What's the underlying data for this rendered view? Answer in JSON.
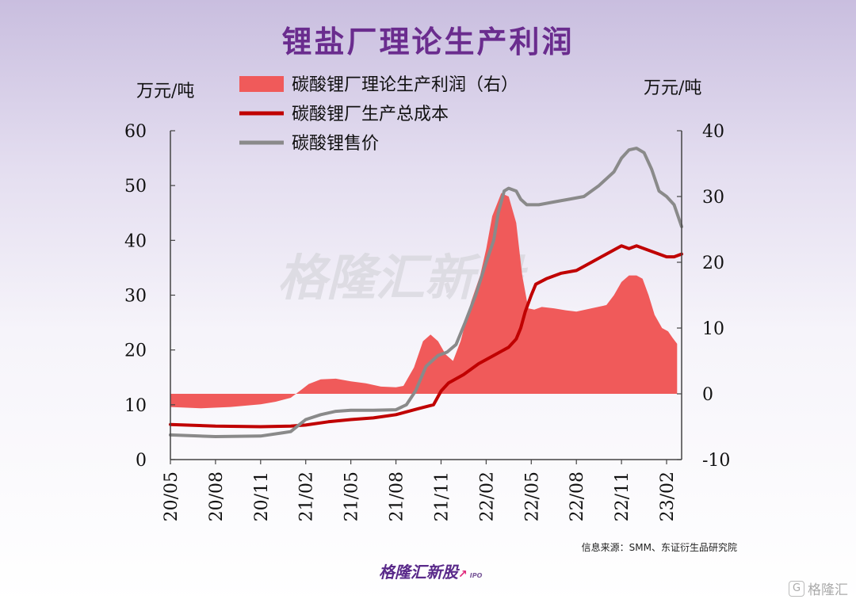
{
  "page": {
    "title": "锂盐厂理论生产利润",
    "source": "信息来源：SMM、东证衍生品研究院",
    "brand": "格隆汇新股",
    "brand_suffix": "IPO",
    "corner_brand": "格隆汇",
    "watermark": "格隆汇新股",
    "colors": {
      "title": "#6a2c8e",
      "profit": "#f05a5a",
      "cost": "#c00000",
      "price": "#8a8a8a"
    }
  },
  "chart_data": {
    "type": "area",
    "title": "锂盐厂理论生产利润",
    "y_left_label": "万元/吨",
    "y_right_label": "万元/吨",
    "y_left_lim": [
      0,
      60
    ],
    "y_right_lim": [
      -10,
      40
    ],
    "y_left_ticks": [
      0,
      10,
      20,
      30,
      40,
      50,
      60
    ],
    "y_right_ticks": [
      -10,
      0,
      10,
      20,
      30,
      40
    ],
    "x_lim": [
      0,
      34
    ],
    "x_ticks": [
      {
        "x": 0,
        "label": "20/05"
      },
      {
        "x": 3,
        "label": "20/08"
      },
      {
        "x": 6,
        "label": "20/11"
      },
      {
        "x": 9,
        "label": "21/02"
      },
      {
        "x": 12,
        "label": "21/05"
      },
      {
        "x": 15,
        "label": "21/08"
      },
      {
        "x": 18,
        "label": "21/11"
      },
      {
        "x": 21,
        "label": "22/02"
      },
      {
        "x": 24,
        "label": "22/05"
      },
      {
        "x": 27,
        "label": "22/08"
      },
      {
        "x": 30,
        "label": "22/11"
      },
      {
        "x": 33,
        "label": "23/02"
      }
    ],
    "grid": false,
    "legend_position": "top-left",
    "series": [
      {
        "name": "碳酸锂厂理论生产利润（右）",
        "kind": "area",
        "axis": "right",
        "color": "#f05a5a",
        "points": [
          [
            0,
            -2
          ],
          [
            2,
            -2.2
          ],
          [
            4,
            -2
          ],
          [
            6,
            -1.6
          ],
          [
            7,
            -1.2
          ],
          [
            8,
            -0.6
          ],
          [
            8.7,
            0.6
          ],
          [
            9.2,
            1.5
          ],
          [
            10,
            2.2
          ],
          [
            11,
            2.3
          ],
          [
            12,
            1.9
          ],
          [
            13,
            1.6
          ],
          [
            14,
            1.1
          ],
          [
            15,
            1.0
          ],
          [
            15.5,
            1.2
          ],
          [
            16.2,
            4
          ],
          [
            16.8,
            8
          ],
          [
            17.3,
            9
          ],
          [
            17.8,
            8
          ],
          [
            18.3,
            6
          ],
          [
            18.8,
            5
          ],
          [
            19.3,
            8
          ],
          [
            20,
            14
          ],
          [
            20.6,
            18
          ],
          [
            21,
            22
          ],
          [
            21.4,
            27
          ],
          [
            22,
            30.5
          ],
          [
            22.5,
            30
          ],
          [
            23,
            26
          ],
          [
            23.4,
            18
          ],
          [
            23.8,
            13
          ],
          [
            24.2,
            12.8
          ],
          [
            24.7,
            13.2
          ],
          [
            25.5,
            13
          ],
          [
            26.3,
            12.7
          ],
          [
            27,
            12.5
          ],
          [
            28,
            13
          ],
          [
            29,
            13.5
          ],
          [
            29.5,
            15
          ],
          [
            30,
            17
          ],
          [
            30.5,
            18
          ],
          [
            31,
            18
          ],
          [
            31.4,
            17.5
          ],
          [
            31.8,
            15
          ],
          [
            32.2,
            12
          ],
          [
            32.7,
            10
          ],
          [
            33.1,
            9.5
          ],
          [
            33.4,
            8.5
          ],
          [
            33.7,
            7.6
          ]
        ]
      },
      {
        "name": "碳酸锂厂生产总成本",
        "kind": "line",
        "axis": "left",
        "color": "#c00000",
        "points": [
          [
            0,
            6.4
          ],
          [
            3,
            6.1
          ],
          [
            6,
            6
          ],
          [
            8,
            6.1
          ],
          [
            9,
            6.3
          ],
          [
            10.5,
            6.9
          ],
          [
            12,
            7.3
          ],
          [
            13.5,
            7.6
          ],
          [
            15,
            8.2
          ],
          [
            16.5,
            9.3
          ],
          [
            17.5,
            10
          ],
          [
            18,
            12.5
          ],
          [
            18.5,
            14
          ],
          [
            19.5,
            15.5
          ],
          [
            20.5,
            17.5
          ],
          [
            21.5,
            19
          ],
          [
            22.5,
            20.5
          ],
          [
            23,
            22
          ],
          [
            23.3,
            24
          ],
          [
            23.6,
            27
          ],
          [
            24,
            30
          ],
          [
            24.3,
            32
          ],
          [
            25,
            33
          ],
          [
            26,
            34
          ],
          [
            27,
            34.5
          ],
          [
            28,
            36
          ],
          [
            29,
            37.5
          ],
          [
            30,
            39
          ],
          [
            30.5,
            38.5
          ],
          [
            31,
            39
          ],
          [
            32,
            38
          ],
          [
            33,
            37
          ],
          [
            33.5,
            37
          ],
          [
            34,
            37.5
          ]
        ]
      },
      {
        "name": "碳酸锂售价",
        "kind": "line",
        "axis": "left",
        "color": "#8a8a8a",
        "points": [
          [
            0,
            4.5
          ],
          [
            3,
            4.2
          ],
          [
            6,
            4.3
          ],
          [
            7.5,
            4.9
          ],
          [
            8,
            5.1
          ],
          [
            9,
            7.3
          ],
          [
            10,
            8.2
          ],
          [
            11,
            8.8
          ],
          [
            12,
            9
          ],
          [
            13.5,
            9
          ],
          [
            15,
            9.1
          ],
          [
            15.7,
            10
          ],
          [
            16.3,
            12.5
          ],
          [
            17,
            17
          ],
          [
            17.8,
            19
          ],
          [
            18.4,
            19.6
          ],
          [
            19,
            21
          ],
          [
            19.6,
            25
          ],
          [
            20.3,
            30
          ],
          [
            21,
            36
          ],
          [
            21.5,
            40
          ],
          [
            21.8,
            45
          ],
          [
            22.2,
            49
          ],
          [
            22.5,
            49.5
          ],
          [
            23,
            49
          ],
          [
            23.3,
            47.5
          ],
          [
            23.7,
            46.5
          ],
          [
            24.5,
            46.5
          ],
          [
            25.5,
            47
          ],
          [
            26.5,
            47.5
          ],
          [
            27.5,
            48
          ],
          [
            28.5,
            50
          ],
          [
            29.5,
            52.5
          ],
          [
            30,
            55
          ],
          [
            30.5,
            56.5
          ],
          [
            31,
            56.8
          ],
          [
            31.5,
            56
          ],
          [
            32,
            53
          ],
          [
            32.5,
            49
          ],
          [
            33,
            48
          ],
          [
            33.5,
            46.5
          ],
          [
            34,
            42.5
          ]
        ]
      }
    ]
  }
}
